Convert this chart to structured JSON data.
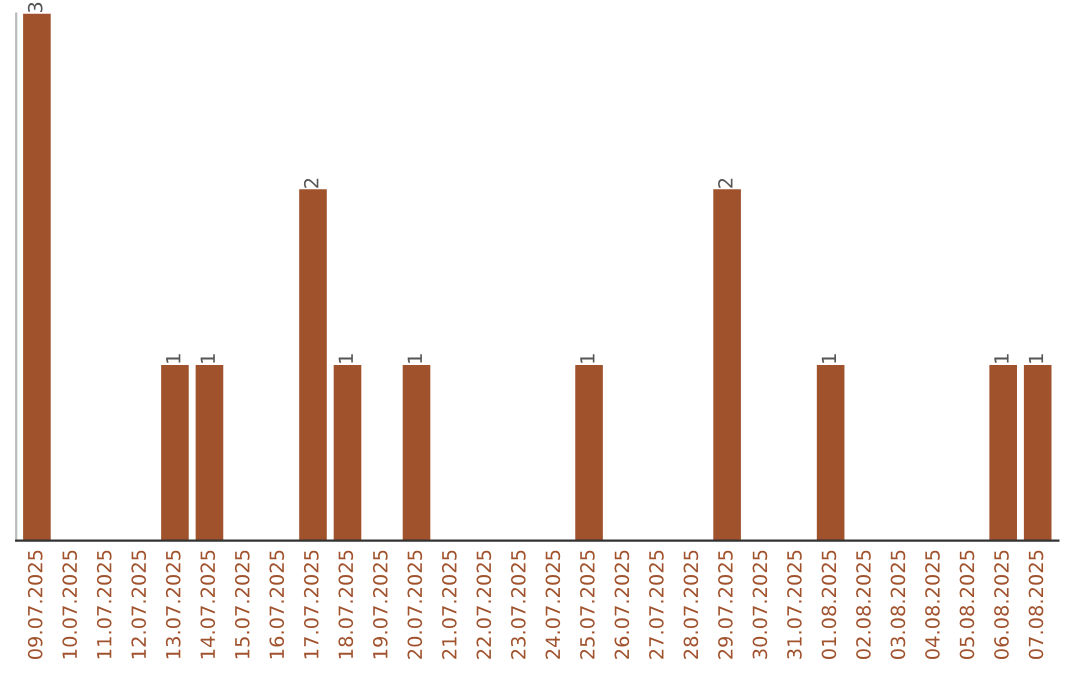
{
  "chart_data": {
    "type": "bar",
    "categories": [
      "09.07.2025",
      "10.07.2025",
      "11.07.2025",
      "12.07.2025",
      "13.07.2025",
      "14.07.2025",
      "15.07.2025",
      "16.07.2025",
      "17.07.2025",
      "18.07.2025",
      "19.07.2025",
      "20.07.2025",
      "21.07.2025",
      "22.07.2025",
      "23.07.2025",
      "24.07.2025",
      "25.07.2025",
      "26.07.2025",
      "27.07.2025",
      "28.07.2025",
      "29.07.2025",
      "30.07.2025",
      "31.07.2025",
      "01.08.2025",
      "02.08.2025",
      "03.08.2025",
      "04.08.2025",
      "05.08.2025",
      "06.08.2025",
      "07.08.2025"
    ],
    "values": [
      3,
      0,
      0,
      0,
      1,
      1,
      0,
      0,
      2,
      1,
      0,
      1,
      0,
      0,
      0,
      0,
      1,
      0,
      0,
      0,
      2,
      0,
      0,
      1,
      0,
      0,
      0,
      0,
      1,
      1
    ],
    "value_labels": [
      "3",
      null,
      null,
      null,
      "1",
      "1",
      null,
      null,
      "2",
      "1",
      null,
      "1",
      null,
      null,
      null,
      null,
      "1",
      null,
      null,
      null,
      "2",
      null,
      null,
      "1",
      null,
      null,
      null,
      null,
      "1",
      "1"
    ],
    "color": "#a0522d",
    "tick_labels": "x",
    "grid": false,
    "legend": false
  }
}
